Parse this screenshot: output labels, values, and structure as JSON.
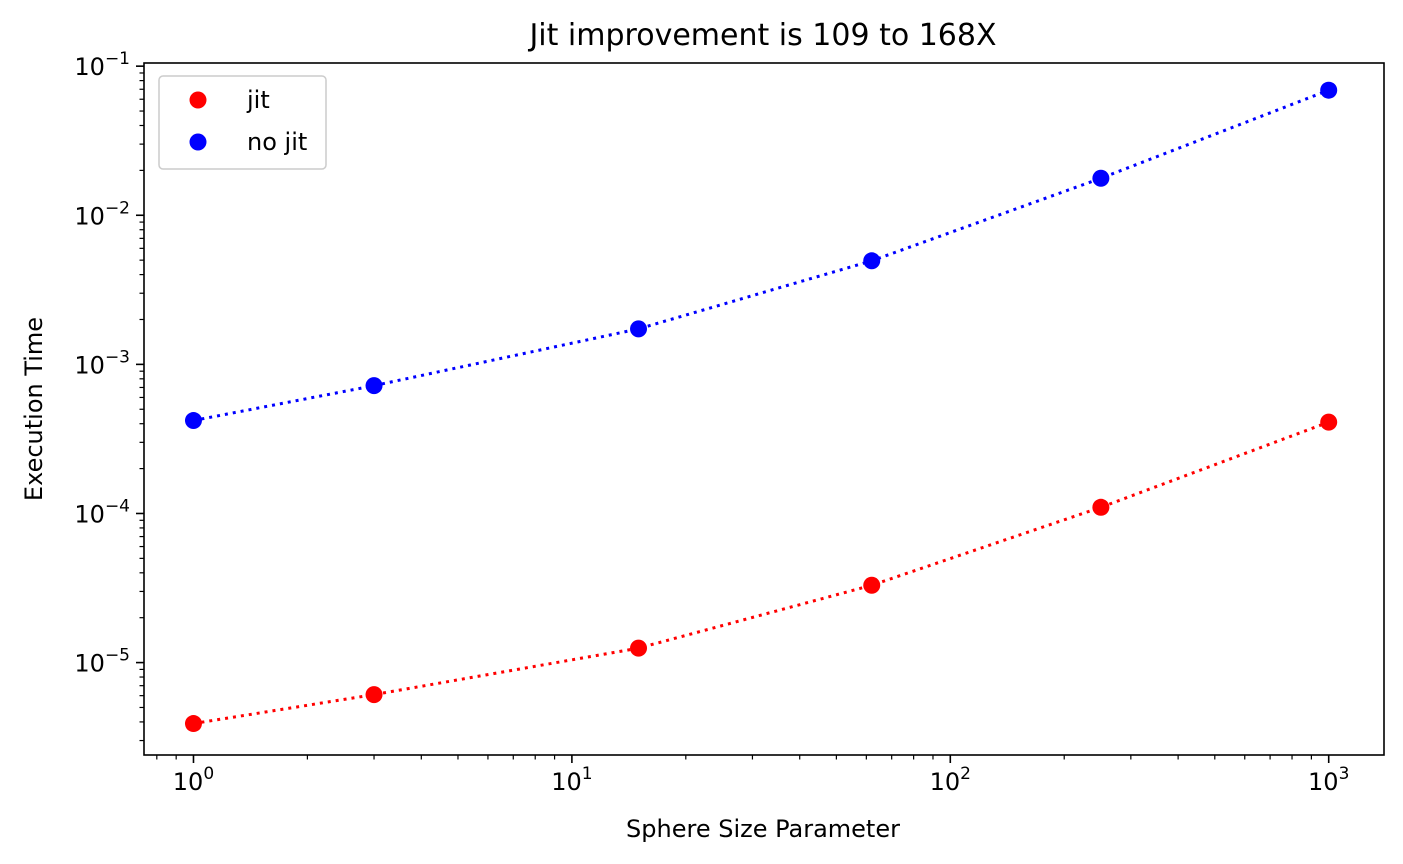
{
  "chart_data": {
    "type": "line",
    "title": "Jit improvement is 109 to 168X",
    "xlabel": "Sphere Size Parameter",
    "ylabel": "Execution Time",
    "xscale": "log",
    "yscale": "log",
    "xlim": [
      0.74,
      1400
    ],
    "ylim": [
      2.4e-06,
      0.105
    ],
    "x": [
      1,
      3,
      15,
      62,
      250,
      1000
    ],
    "series": [
      {
        "name": "jit",
        "color": "#ff0000",
        "marker": "circle",
        "linestyle": "dotted",
        "values": [
          3.9e-06,
          6.1e-06,
          1.25e-05,
          3.3e-05,
          0.00011,
          0.00041
        ]
      },
      {
        "name": "no jit",
        "color": "#0000ff",
        "marker": "circle",
        "linestyle": "dotted",
        "values": [
          0.00042,
          0.00072,
          0.00173,
          0.00495,
          0.0177,
          0.069
        ]
      }
    ],
    "x_ticks": [
      {
        "value": 1,
        "base": "10",
        "exp": "0"
      },
      {
        "value": 10,
        "base": "10",
        "exp": "1"
      },
      {
        "value": 100,
        "base": "10",
        "exp": "2"
      },
      {
        "value": 1000,
        "base": "10",
        "exp": "3"
      }
    ],
    "y_ticks": [
      {
        "value": 1e-05,
        "base": "10",
        "exp": "−5"
      },
      {
        "value": 0.0001,
        "base": "10",
        "exp": "−4"
      },
      {
        "value": 0.001,
        "base": "10",
        "exp": "−3"
      },
      {
        "value": 0.01,
        "base": "10",
        "exp": "−2"
      },
      {
        "value": 0.1,
        "base": "10",
        "exp": "−1"
      }
    ],
    "grid": false,
    "legend_position": "top-left"
  }
}
